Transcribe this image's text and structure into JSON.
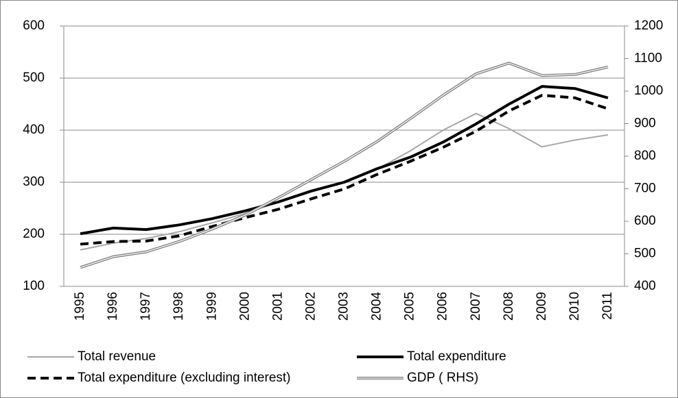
{
  "chart_data": {
    "type": "line",
    "categories": [
      "1995",
      "1996",
      "1997",
      "1998",
      "1999",
      "2000",
      "2001",
      "2002",
      "2003",
      "2004",
      "2005",
      "2006",
      "2007",
      "2008",
      "2009",
      "2010",
      "2011"
    ],
    "ylim": [
      100,
      600
    ],
    "yticks": [
      100,
      200,
      300,
      400,
      500,
      600
    ],
    "y2lim": [
      400,
      1200
    ],
    "y2ticks": [
      400,
      500,
      600,
      700,
      800,
      900,
      1000,
      1100,
      1200
    ],
    "grid": true,
    "legend": "bottom",
    "series": [
      {
        "name": "Total revenue",
        "color": "#a6a6a6",
        "style": "solid",
        "width": 2,
        "values": [
          170,
          183,
          192,
          205,
          222,
          240,
          262,
          283,
          300,
          325,
          360,
          400,
          432,
          403,
          368,
          381,
          391
        ]
      },
      {
        "name": "Total expenditure",
        "color": "#000000",
        "style": "solid",
        "width": 4,
        "values": [
          201,
          212,
          209,
          218,
          230,
          245,
          262,
          283,
          300,
          326,
          348,
          377,
          412,
          450,
          484,
          480,
          462
        ]
      },
      {
        "name": "Total expenditure (excluding interest)",
        "color": "#000000",
        "style": "dashed",
        "width": 4,
        "values": [
          181,
          186,
          187,
          197,
          215,
          232,
          248,
          268,
          287,
          315,
          340,
          367,
          398,
          437,
          467,
          462,
          441
        ]
      },
      {
        "name": "GDP ( RHS)",
        "color": "#7f7f7f",
        "style": "double",
        "width": 4,
        "axis": "y2",
        "values": [
          458,
          491,
          506,
          538,
          576,
          619,
          672,
          728,
          784,
          845,
          915,
          987,
          1053,
          1086,
          1048,
          1051,
          1074
        ]
      }
    ]
  }
}
